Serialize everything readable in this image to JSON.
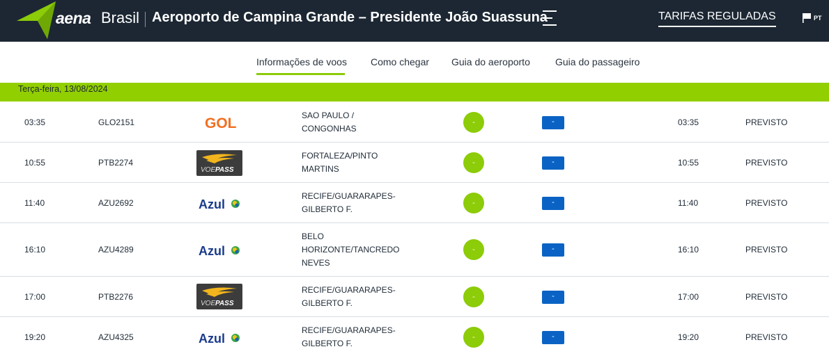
{
  "header": {
    "brand_main": "aena",
    "brand_country": "Brasil",
    "airport_title": "Aeroporto de Campina Grande – Presidente João Suassuna",
    "tarifas_label": "TARIFAS REGULADAS",
    "language": "PT",
    "colors": {
      "background": "#1c2733",
      "accent": "#8ccc08"
    }
  },
  "nav": {
    "items": [
      {
        "label": "Informações de voos",
        "active": true
      },
      {
        "label": "Como chegar",
        "active": false
      },
      {
        "label": "Guia do aeroporto",
        "active": false
      },
      {
        "label": "Guia do passageiro",
        "active": false
      }
    ]
  },
  "date_label": "Terça-feira, 13/08/2024",
  "flights": [
    {
      "time": "03:35",
      "flight": "GLO2151",
      "airline": "gol",
      "destination": "SAO PAULO / CONGONHAS",
      "gate": "-",
      "belt": "-",
      "estimated": "03:35",
      "status": "PREVISTO"
    },
    {
      "time": "10:55",
      "flight": "PTB2274",
      "airline": "voepass",
      "destination": "FORTALEZA/PINTO MARTINS",
      "gate": "-",
      "belt": "-",
      "estimated": "10:55",
      "status": "PREVISTO"
    },
    {
      "time": "11:40",
      "flight": "AZU2692",
      "airline": "azul",
      "destination": "RECIFE/GUARARAPES-GILBERTO F.",
      "gate": "-",
      "belt": "-",
      "estimated": "11:40",
      "status": "PREVISTO"
    },
    {
      "time": "16:10",
      "flight": "AZU4289",
      "airline": "azul",
      "destination": "BELO HORIZONTE/TANCREDO NEVES",
      "gate": "-",
      "belt": "-",
      "estimated": "16:10",
      "status": "PREVISTO"
    },
    {
      "time": "17:00",
      "flight": "PTB2276",
      "airline": "voepass",
      "destination": "RECIFE/GUARARAPES-GILBERTO F.",
      "gate": "-",
      "belt": "-",
      "estimated": "17:00",
      "status": "PREVISTO"
    },
    {
      "time": "19:20",
      "flight": "AZU4325",
      "airline": "azul",
      "destination": "RECIFE/GUARARAPES-GILBERTO F.",
      "gate": "-",
      "belt": "-",
      "estimated": "19:20",
      "status": "PREVISTO"
    }
  ],
  "airline_logos": {
    "gol": {
      "icon": "gol-logo",
      "text": "GOL",
      "color": "#f26f21"
    },
    "voepass": {
      "icon": "voepass-logo",
      "text_a": "VOE",
      "text_b": "PASS",
      "colors": {
        "box": "#3c3c3c",
        "wing": "#f2b51d"
      }
    },
    "azul": {
      "icon": "azul-logo",
      "text": "Azul",
      "color": "#1a3b8c"
    }
  }
}
